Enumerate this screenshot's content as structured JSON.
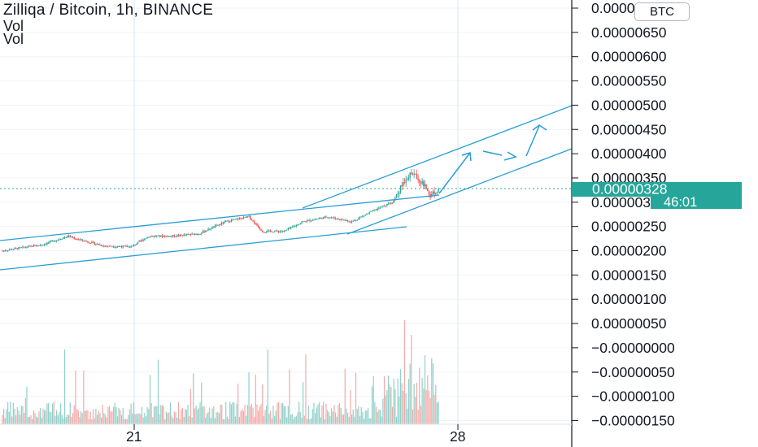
{
  "header": {
    "title": "Zilliqa / Bitcoin, 1h, BINANCE",
    "volume_label_1": "Vol",
    "volume_label_2": "Vol"
  },
  "currency_badge": "BTC",
  "price_axis": {
    "tick_labels": [
      "0.00000700",
      "0.00000650",
      "0.00000600",
      "0.00000550",
      "0.00000500",
      "0.00000450",
      "0.00000400",
      "0.00000350",
      "0.00000300",
      "0.00000250",
      "0.00000200",
      "0.00000150",
      "0.00000100",
      "0.00000050",
      "−0.00000000",
      "−0.00000050",
      "−0.00000100",
      "−0.00000150"
    ],
    "current_price_label": "0.00000328",
    "countdown_label": "46:01"
  },
  "time_axis": {
    "tick_labels": [
      "21",
      "28"
    ]
  },
  "colors": {
    "up": "#26a69a",
    "down": "#ef5350",
    "drawing": "#2a9fd6",
    "price_tag": "#26a69a",
    "grid": "#f0f3fa",
    "axis_text": "#131722"
  },
  "chart_data": {
    "type": "candlestick",
    "symbol": "Zilliqa / Bitcoin",
    "interval": "1h",
    "exchange": "BINANCE",
    "currency": "BTC",
    "y_range": [
      -1.6e-06,
      7.1e-06
    ],
    "last_price": 3.28e-06,
    "countdown": "46:01",
    "x_ticks": [
      "21",
      "28"
    ],
    "anchors": [
      {
        "i": 0,
        "p": 2e-06
      },
      {
        "i": 30,
        "p": 2.13e-06
      },
      {
        "i": 48,
        "p": 2.3e-06
      },
      {
        "i": 58,
        "p": 2.22e-06
      },
      {
        "i": 75,
        "p": 2.1e-06
      },
      {
        "i": 95,
        "p": 2.08e-06
      },
      {
        "i": 108,
        "p": 2.3e-06
      },
      {
        "i": 125,
        "p": 2.3e-06
      },
      {
        "i": 145,
        "p": 2.35e-06
      },
      {
        "i": 165,
        "p": 2.6e-06
      },
      {
        "i": 182,
        "p": 2.7e-06
      },
      {
        "i": 192,
        "p": 2.4e-06
      },
      {
        "i": 208,
        "p": 2.4e-06
      },
      {
        "i": 222,
        "p": 2.6e-06
      },
      {
        "i": 240,
        "p": 2.7e-06
      },
      {
        "i": 258,
        "p": 2.6e-06
      },
      {
        "i": 272,
        "p": 2.8e-06
      },
      {
        "i": 288,
        "p": 3e-06
      },
      {
        "i": 298,
        "p": 3.5e-06
      },
      {
        "i": 303,
        "p": 3.6e-06
      },
      {
        "i": 310,
        "p": 3.4e-06
      },
      {
        "i": 316,
        "p": 3.15e-06
      },
      {
        "i": 322,
        "p": 3.28e-06
      }
    ],
    "volume_scale_note": "volume bars are plotted in the lower pane without a printed scale",
    "drawings": "ascending parallel channels with projected upward arrows"
  }
}
